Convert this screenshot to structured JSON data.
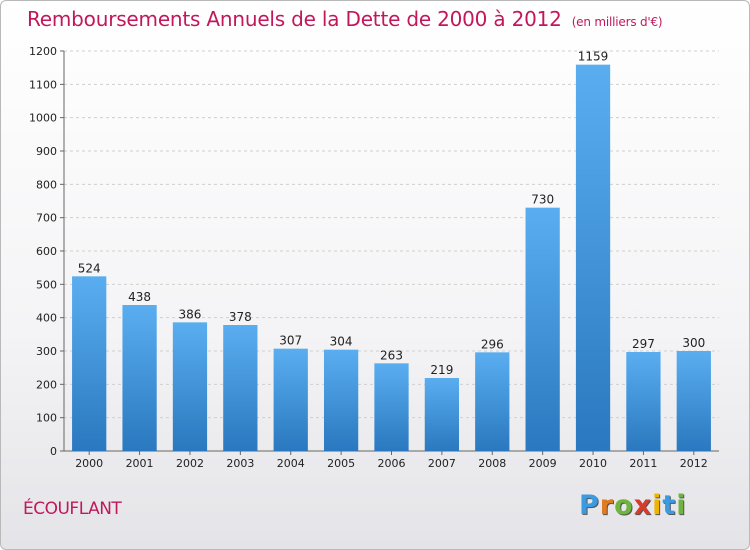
{
  "title": "Remboursements Annuels de la Dette de 2000 à 2012",
  "unit": "(en milliers d'€)",
  "commune": "ÉCOUFLANT",
  "logo": {
    "letters": [
      "P",
      "r",
      "o",
      "x",
      "i",
      "t",
      "i"
    ],
    "colors": [
      "#3a9be0",
      "#e27a1e",
      "#6fb43f",
      "#d93b2b",
      "#f0b400",
      "#3a9be0",
      "#6fb43f"
    ]
  },
  "colors": {
    "title": "#c2185b",
    "bar_top": "#5aaef0",
    "bar_bottom": "#2a78bf",
    "grid": "#cfcfcf"
  },
  "chart_data": {
    "type": "bar",
    "categories": [
      "2000",
      "2001",
      "2002",
      "2003",
      "2004",
      "2005",
      "2006",
      "2007",
      "2008",
      "2009",
      "2010",
      "2011",
      "2012"
    ],
    "values": [
      524,
      438,
      386,
      378,
      307,
      304,
      263,
      219,
      296,
      730,
      1159,
      297,
      300
    ],
    "ylim": [
      0,
      1200
    ],
    "yticks": [
      0,
      100,
      200,
      300,
      400,
      500,
      600,
      700,
      800,
      900,
      1000,
      1100,
      1200
    ],
    "grid": true,
    "xlabel": "",
    "ylabel": ""
  }
}
